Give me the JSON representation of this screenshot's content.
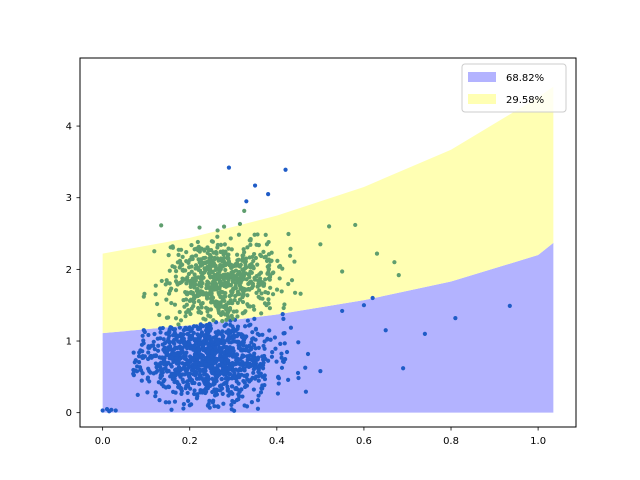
{
  "chart_data": {
    "type": "scatter",
    "title": "",
    "xlabel": "",
    "ylabel": "",
    "xlim": [
      -0.052,
      1.087
    ],
    "ylim": [
      -0.2,
      4.95
    ],
    "x_ticks": [
      0.0,
      0.2,
      0.4,
      0.6,
      0.8,
      1.0
    ],
    "x_tick_labels": [
      "0.0",
      "0.2",
      "0.4",
      "0.6",
      "0.8",
      "1.0"
    ],
    "y_ticks": [
      0,
      1,
      2,
      3,
      4
    ],
    "y_tick_labels": [
      "0",
      "1",
      "2",
      "3",
      "4"
    ],
    "grid": false,
    "legend_position": "top-right",
    "bands": [
      {
        "name": "68.82%",
        "color": "#b3b3ff",
        "x": [
          0.0,
          0.2,
          0.4,
          0.6,
          0.8,
          1.0,
          1.035
        ],
        "lower": [
          0,
          0,
          0,
          0,
          0,
          0,
          0
        ],
        "upper": [
          1.11,
          1.22,
          1.37,
          1.57,
          1.83,
          2.2,
          2.37
        ]
      },
      {
        "name": "29.58%",
        "color": "#ffffb3",
        "x": [
          0.0,
          0.2,
          0.4,
          0.6,
          0.8,
          1.0,
          1.035
        ],
        "lower": [
          1.11,
          1.22,
          1.37,
          1.57,
          1.83,
          2.2,
          2.37
        ],
        "upper": [
          2.22,
          2.44,
          2.75,
          3.15,
          3.67,
          4.4,
          4.55
        ]
      }
    ],
    "series": [
      {
        "color": "#1f5cc7",
        "cluster": {
          "mean_x": 0.24,
          "sd_x": 0.075,
          "mean_y": 0.78,
          "sd_y": 0.3,
          "count": 1100,
          "seed": 11
        },
        "x": [
          0.0,
          0.01,
          0.02,
          0.03,
          0.015,
          0.5,
          0.55,
          0.6,
          0.62,
          0.65,
          0.69,
          0.74,
          0.81,
          0.935,
          0.29,
          0.42,
          0.35,
          0.38,
          0.33
        ],
        "y": [
          0.03,
          0.05,
          0.04,
          0.03,
          0.02,
          0.58,
          1.42,
          1.5,
          1.6,
          1.15,
          0.62,
          1.1,
          1.32,
          1.49,
          3.42,
          3.39,
          3.17,
          3.05,
          2.95
        ]
      },
      {
        "color": "#5f9e6e",
        "cluster": {
          "mean_x": 0.27,
          "sd_x": 0.065,
          "mean_y": 1.85,
          "sd_y": 0.3,
          "count": 650,
          "seed": 29
        },
        "x": [
          0.5,
          0.52,
          0.55,
          0.58,
          0.63,
          0.67,
          0.68
        ],
        "y": [
          2.35,
          2.6,
          1.97,
          2.62,
          2.22,
          2.1,
          1.92
        ]
      }
    ]
  }
}
